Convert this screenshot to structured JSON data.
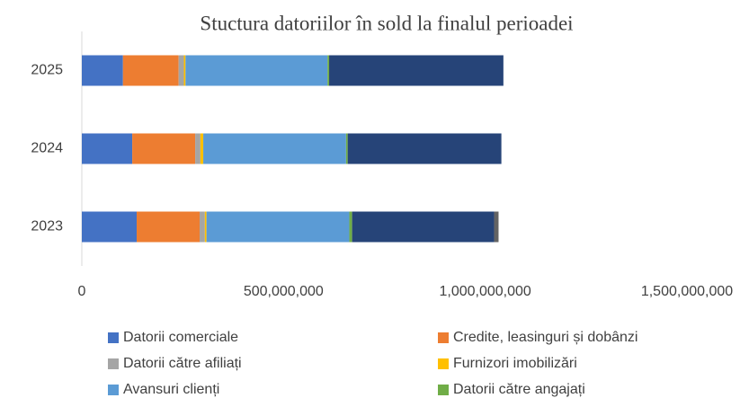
{
  "chart_data": {
    "type": "stacked_bar_horizontal",
    "title": "Stuctura datoriilor în sold la finalul perioadei",
    "categories": [
      "2025",
      "2024",
      "2023"
    ],
    "series": [
      {
        "name": "Datorii comerciale",
        "color": "#4472c4",
        "values": [
          102000000,
          125000000,
          136000000
        ]
      },
      {
        "name": "Credite, leasinguri și dobânzi",
        "color": "#ed7d31",
        "values": [
          138000000,
          156000000,
          156000000
        ]
      },
      {
        "name": "Datorii către afiliați",
        "color": "#a5a5a5",
        "values": [
          13000000,
          13000000,
          13000000
        ]
      },
      {
        "name": "Furnizori imobilizări",
        "color": "#ffc000",
        "values": [
          4000000,
          7000000,
          4000000
        ]
      },
      {
        "name": "Avansuri clienți",
        "color": "#5b9bd5",
        "values": [
          352000000,
          354000000,
          354000000
        ]
      },
      {
        "name": "Datorii către angajați",
        "color": "#70ad47",
        "values": [
          4000000,
          4000000,
          7000000
        ]
      },
      {
        "color": "#264478",
        "values": [
          432000000,
          381000000,
          352000000
        ]
      },
      {
        "color": "#636363",
        "values": [
          0,
          0,
          11000000
        ]
      }
    ],
    "xlim": [
      0,
      1500000000
    ],
    "xticks": [
      0,
      {
        "value": 500000000,
        "label": "500,000,000"
      },
      {
        "value": 1000000000,
        "label": "1,000,000,000"
      },
      {
        "value": 1500000000,
        "label": "1,500,000,000"
      }
    ],
    "grid": false
  }
}
